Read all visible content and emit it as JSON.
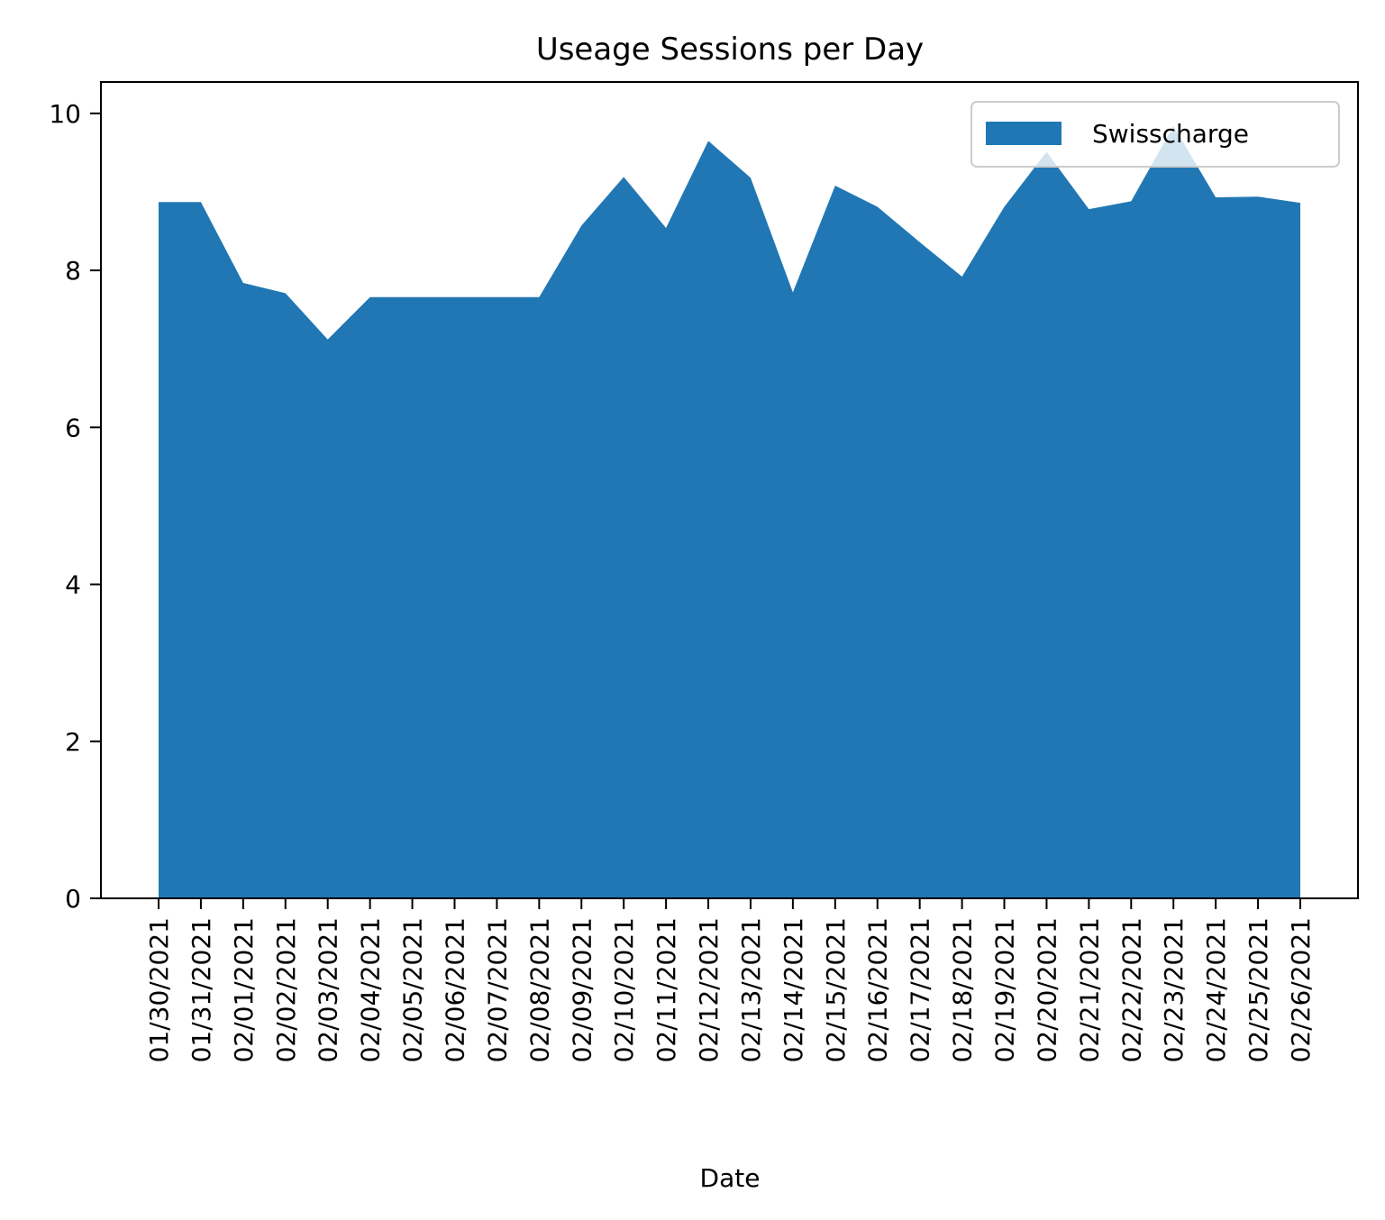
{
  "chart_data": {
    "type": "area",
    "title": "Useage Sessions per Day",
    "xlabel": "Date",
    "ylabel": "",
    "ylim": [
      0,
      10.4
    ],
    "yticks": [
      0,
      2,
      4,
      6,
      8,
      10
    ],
    "grid": false,
    "legend_position": "top-right",
    "categories": [
      "01/30/2021",
      "01/31/2021",
      "02/01/2021",
      "02/02/2021",
      "02/03/2021",
      "02/04/2021",
      "02/05/2021",
      "02/06/2021",
      "02/07/2021",
      "02/08/2021",
      "02/09/2021",
      "02/10/2021",
      "02/11/2021",
      "02/12/2021",
      "02/13/2021",
      "02/14/2021",
      "02/15/2021",
      "02/16/2021",
      "02/17/2021",
      "02/18/2021",
      "02/19/2021",
      "02/20/2021",
      "02/21/2021",
      "02/22/2021",
      "02/23/2021",
      "02/24/2021",
      "02/25/2021",
      "02/26/2021"
    ],
    "series": [
      {
        "name": "Swisscharge",
        "color": "#2077b4",
        "values": [
          8.87,
          8.87,
          7.84,
          7.71,
          7.12,
          7.66,
          7.66,
          7.66,
          7.66,
          7.66,
          8.57,
          9.19,
          8.54,
          9.65,
          9.18,
          7.72,
          9.08,
          8.81,
          8.36,
          7.92,
          8.81,
          9.51,
          8.78,
          8.88,
          9.84,
          8.93,
          8.94,
          8.86
        ]
      }
    ]
  }
}
